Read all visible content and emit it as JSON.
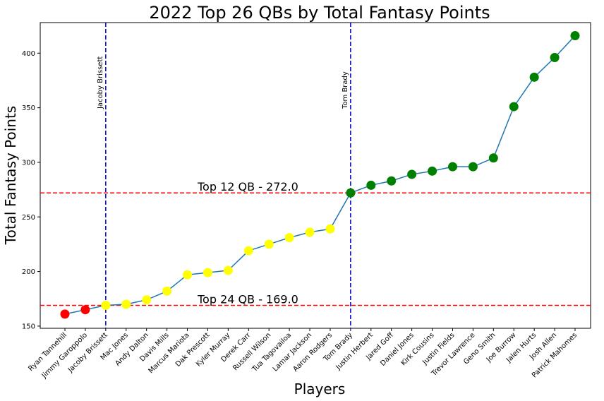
{
  "chart_data": {
    "type": "line",
    "title": "2022 Top 26 QBs by Total Fantasy Points",
    "xlabel": "Players",
    "ylabel": "Total Fantasy Points",
    "ylim": [
      148,
      428
    ],
    "yticks": [
      150,
      200,
      250,
      300,
      350,
      400
    ],
    "grid": false,
    "line_color": "#1f77b4",
    "categories": [
      "Ryan Tannehill",
      "Jimmy Garoppolo",
      "Jacoby Brissett",
      "Mac Jones",
      "Andy Dalton",
      "Davis Mills",
      "Marcus Mariota",
      "Dak Prescott",
      "Kyler Murray",
      "Derek Carr",
      "Russell Wilson",
      "Tua Tagovailoa",
      "Lamar Jackson",
      "Aaron Rodgers",
      "Tom Brady",
      "Justin Herbert",
      "Jared Goff",
      "Daniel Jones",
      "Kirk Cousins",
      "Justin Fields",
      "Trevor Lawrence",
      "Geno Smith",
      "Joe Burrow",
      "Jalen Hurts",
      "Josh Allen",
      "Patrick Mahomes"
    ],
    "values": [
      161,
      165,
      169,
      170,
      174,
      182,
      197,
      199,
      201,
      219,
      225,
      231,
      236,
      239,
      272,
      279,
      283,
      289,
      292,
      296,
      296,
      304,
      351,
      378,
      396,
      416
    ],
    "point_colors": [
      "#ff0000",
      "#ff0000",
      "#ffff00",
      "#ffff00",
      "#ffff00",
      "#ffff00",
      "#ffff00",
      "#ffff00",
      "#ffff00",
      "#ffff00",
      "#ffff00",
      "#ffff00",
      "#ffff00",
      "#ffff00",
      "#008000",
      "#008000",
      "#008000",
      "#008000",
      "#008000",
      "#008000",
      "#008000",
      "#008000",
      "#008000",
      "#008000",
      "#008000",
      "#008000"
    ],
    "hlines": [
      {
        "label": "Top 12 QB - 272.0",
        "value": 272.0,
        "color": "#ff0000"
      },
      {
        "label": "Top 24 QB - 169.0",
        "value": 169.0,
        "color": "#ff0000"
      }
    ],
    "vlines": [
      {
        "label": "Jacoby Brissett",
        "category": "Jacoby Brissett",
        "color": "#0000cc"
      },
      {
        "label": "Tom Brady",
        "category": "Tom Brady",
        "color": "#0000cc"
      }
    ]
  }
}
